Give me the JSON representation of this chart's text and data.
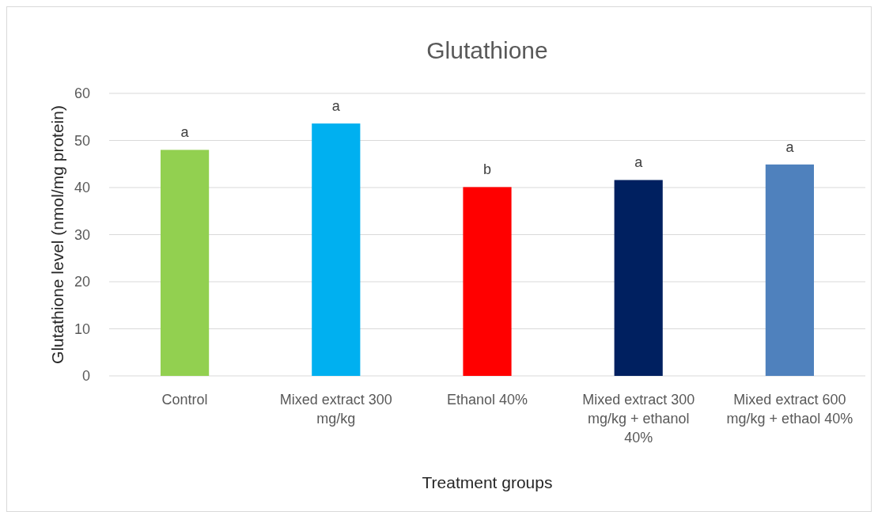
{
  "chart_data": {
    "type": "bar",
    "title": "Glutathione",
    "xlabel": "Treatment groups",
    "ylabel": "Glutathione level (nmol/mg protein)",
    "categories": [
      "Control",
      "Mixed extract 300 mg/kg",
      "Ethanol 40%",
      "Mixed extract 300 mg/kg + ethanol 40%",
      "Mixed extract 600 mg/kg + ethaol 40%"
    ],
    "values": [
      48.0,
      53.6,
      40.1,
      41.6,
      44.9
    ],
    "colors": [
      "#92d050",
      "#00b0f0",
      "#ff0000",
      "#002060",
      "#4f81bd"
    ],
    "ylim": [
      0,
      60
    ],
    "yticks": [
      0,
      10,
      20,
      30,
      40,
      50,
      60
    ],
    "grid": "y",
    "annotations": [
      {
        "text": "a",
        "x": "Control",
        "y": 48.0
      },
      {
        "text": "a",
        "x": "Mixed extract 300 mg/kg",
        "y": 53.6
      },
      {
        "text": "b",
        "x": "Ethanol 40%",
        "y": 40.1
      },
      {
        "text": "a",
        "x": "Mixed extract 300 mg/kg + ethanol 40%",
        "y": 41.6
      },
      {
        "text": "a",
        "x": "Mixed extract 600 mg/kg + ethaol 40%",
        "y": 44.9
      }
    ]
  }
}
